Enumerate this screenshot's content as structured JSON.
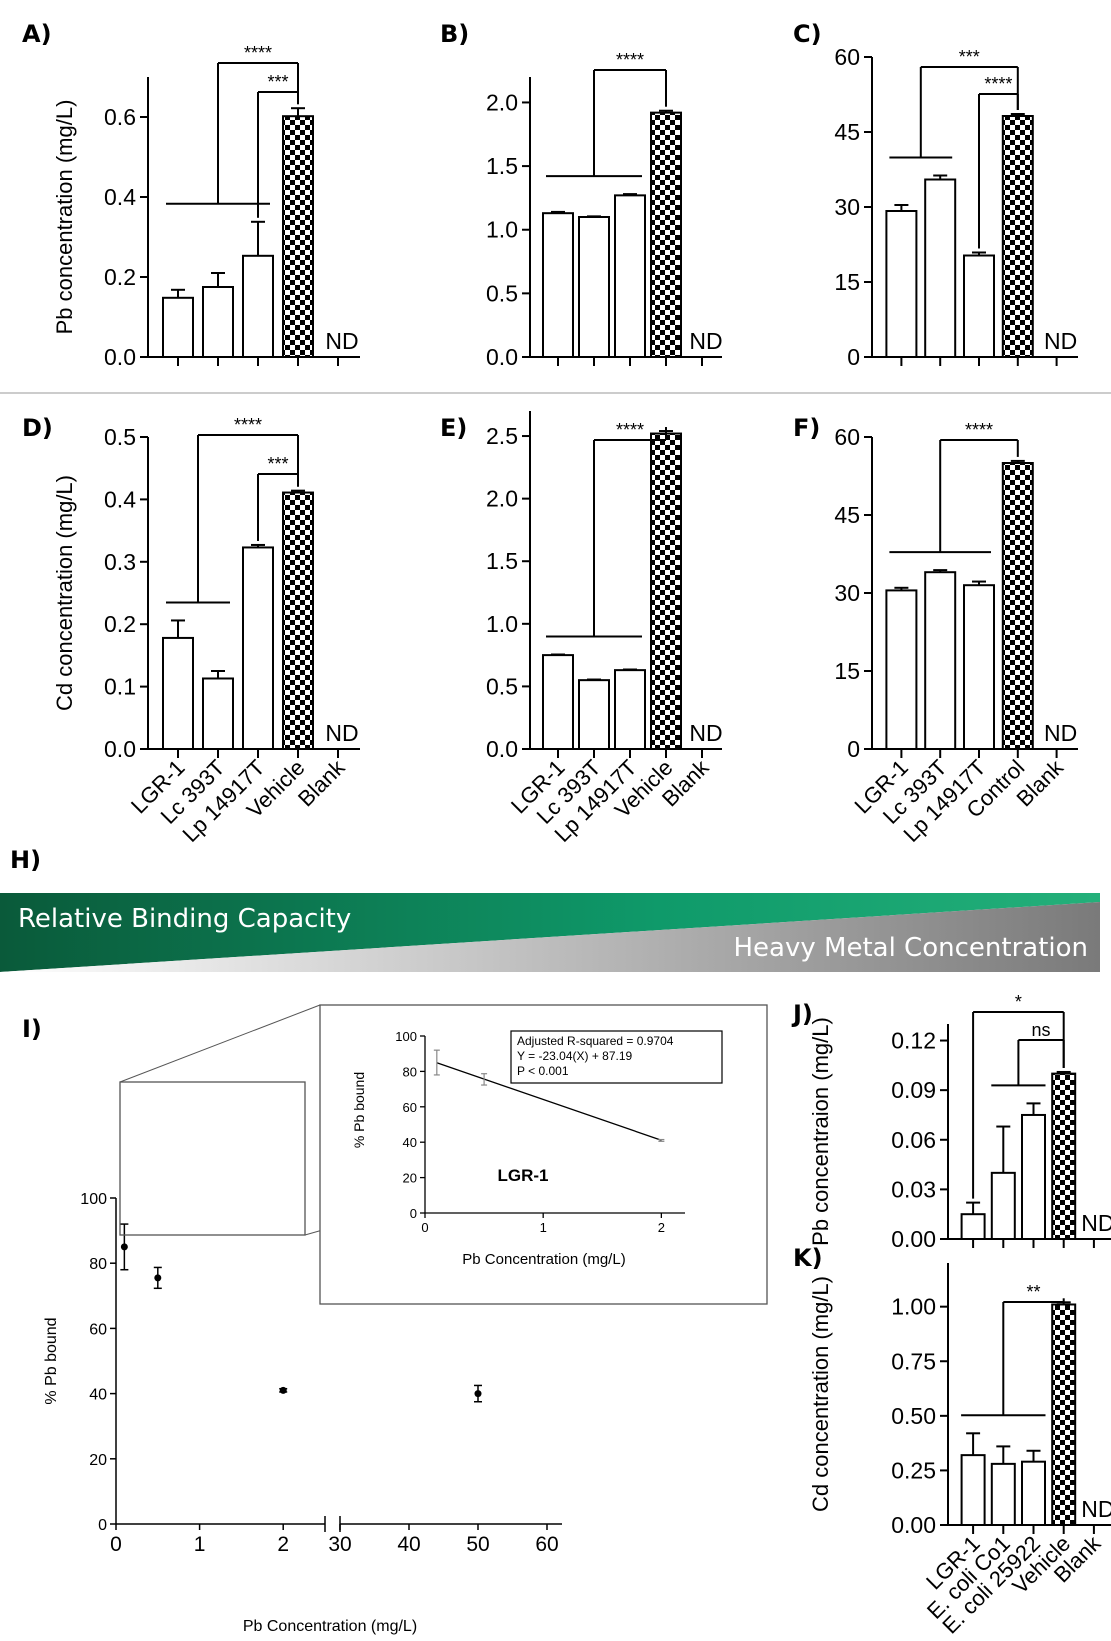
{
  "figure": {
    "panel_labels": [
      "A)",
      "B)",
      "C)",
      "D)",
      "E)",
      "F)",
      "H)",
      "I)",
      "J)",
      "K)"
    ],
    "nd_label": "ND"
  },
  "banner": {
    "top_text": "Relative Binding Capacity",
    "bottom_text": "Heavy Metal Concentration",
    "colors": {
      "green_dark": "#0a5a3a",
      "green": "#0f9a6a",
      "gray": "#8a8a8a"
    }
  },
  "colors": {
    "bar_fill": "#ffffff",
    "pattern_dark": "#000000",
    "axis": "#000000"
  },
  "chart_data": [
    {
      "panel": "A)",
      "type": "bar",
      "ylabel": "Pb concentration (mg/L)",
      "ylim": [
        0,
        0.7
      ],
      "yticks": [
        0.0,
        0.2,
        0.4,
        0.6
      ],
      "categories": [
        "LGR-1",
        "Lc 393T",
        "Lp 14917T",
        "Vehicle",
        "Blank"
      ],
      "values": [
        0.148,
        0.175,
        0.253,
        0.602,
        null
      ],
      "errors": [
        0.02,
        0.035,
        0.085,
        0.02,
        null
      ],
      "patterned_index": 3,
      "significance": [
        {
          "label": "****",
          "group": [
            0,
            2
          ],
          "to": 3
        },
        {
          "label": "***",
          "group": [
            2,
            2
          ],
          "to": 3
        }
      ]
    },
    {
      "panel": "B)",
      "type": "bar",
      "ylabel": "",
      "ylim": [
        0,
        2.2
      ],
      "yticks": [
        0.0,
        0.5,
        1.0,
        1.5,
        2.0
      ],
      "categories": [
        "LGR-1",
        "Lc 393T",
        "Lp 14917T",
        "Vehicle",
        "Blank"
      ],
      "values": [
        1.13,
        1.1,
        1.27,
        1.92,
        null
      ],
      "errors": [
        0.01,
        0.005,
        0.01,
        0.015,
        null
      ],
      "patterned_index": 3,
      "significance": [
        {
          "label": "****",
          "group": [
            0,
            2
          ],
          "to": 3
        }
      ]
    },
    {
      "panel": "C)",
      "type": "bar",
      "ylabel": "",
      "ylim": [
        0,
        60
      ],
      "yticks": [
        0,
        15,
        30,
        45,
        60
      ],
      "categories": [
        "LGR-1",
        "Lc 393T",
        "Lp 14917T",
        "Control",
        "Blank"
      ],
      "values": [
        29.2,
        35.5,
        20.3,
        48.2,
        null
      ],
      "errors": [
        1.2,
        0.8,
        0.6,
        0.4,
        null
      ],
      "patterned_index": 3,
      "significance": [
        {
          "label": "***",
          "group": [
            0,
            1
          ],
          "to": 3
        },
        {
          "label": "****",
          "group": [
            2,
            2
          ],
          "to": 3
        }
      ]
    },
    {
      "panel": "D)",
      "type": "bar",
      "ylabel": "Cd concentration (mg/L)",
      "ylim": [
        0,
        0.5
      ],
      "yticks": [
        0.0,
        0.1,
        0.2,
        0.3,
        0.4,
        0.5
      ],
      "categories": [
        "LGR-1",
        "Lc 393T",
        "Lp 14917T",
        "Vehicle",
        "Blank"
      ],
      "values": [
        0.178,
        0.113,
        0.323,
        0.411,
        null
      ],
      "errors": [
        0.028,
        0.012,
        0.004,
        0.003,
        null
      ],
      "patterned_index": 3,
      "significance": [
        {
          "label": "****",
          "group": [
            0,
            1
          ],
          "to": 3
        },
        {
          "label": "***",
          "group": [
            2,
            2
          ],
          "to": 3
        }
      ]
    },
    {
      "panel": "E)",
      "type": "bar",
      "ylabel": "",
      "ylim": [
        0,
        2.7
      ],
      "yticks": [
        0.0,
        0.5,
        1.0,
        1.5,
        2.0,
        2.5
      ],
      "categories": [
        "LGR-1",
        "Lc 393T",
        "Lp 14917T",
        "Vehicle",
        "Blank"
      ],
      "values": [
        0.75,
        0.55,
        0.63,
        2.52,
        null
      ],
      "errors": [
        0.005,
        0.005,
        0.005,
        0.02,
        null
      ],
      "patterned_index": 3,
      "significance": [
        {
          "label": "****",
          "group": [
            0,
            2
          ],
          "to": 3
        }
      ]
    },
    {
      "panel": "F)",
      "type": "bar",
      "ylabel": "",
      "ylim": [
        0,
        60
      ],
      "yticks": [
        0,
        15,
        30,
        45,
        60
      ],
      "categories": [
        "LGR-1",
        "Lc 393T",
        "Lp 14917T",
        "Control",
        "Blank"
      ],
      "values": [
        30.5,
        34.0,
        31.5,
        55.0,
        null
      ],
      "errors": [
        0.5,
        0.4,
        0.7,
        0.4,
        null
      ],
      "patterned_index": 3,
      "significance": [
        {
          "label": "****",
          "group": [
            0,
            2
          ],
          "to": 3
        }
      ]
    },
    {
      "panel": "I)",
      "type": "scatter",
      "ylabel": "% Pb bound",
      "xlabel": "Pb Concentration (mg/L)",
      "ylim": [
        0,
        100
      ],
      "yticks": [
        0,
        20,
        40,
        60,
        80,
        100
      ],
      "x_break": {
        "left_range": [
          0,
          2.5
        ],
        "right_range": [
          30,
          60
        ]
      },
      "xticks_left": [
        0,
        1,
        2
      ],
      "xticks_right": [
        30,
        40,
        50,
        60
      ],
      "x": [
        0.1,
        0.5,
        2,
        50
      ],
      "y": [
        85,
        75.5,
        41,
        40
      ],
      "errors": [
        7,
        3.2,
        0.5,
        2.5
      ],
      "inset": {
        "type": "line",
        "title": "LGR-1",
        "xlabel": "Pb Concentration (mg/L)",
        "ylabel": "% Pb bound",
        "xlim": [
          0,
          2.2
        ],
        "ylim": [
          0,
          100
        ],
        "xticks": [
          0,
          1,
          2
        ],
        "yticks": [
          0,
          20,
          40,
          60,
          80,
          100
        ],
        "x": [
          0.1,
          0.5,
          2
        ],
        "y": [
          85,
          75.5,
          41
        ],
        "errors": [
          7,
          3.2,
          0.5
        ],
        "fit": {
          "slope": -23.04,
          "intercept": 87.19
        },
        "stats": [
          "Adjusted  R-squared = 0.9704",
          "Y = -23.04(X) + 87.19",
          "P < 0.001"
        ]
      }
    },
    {
      "panel": "J)",
      "type": "bar",
      "ylabel": "Pb concentraion (mg/L)",
      "ylim": [
        0,
        0.13
      ],
      "yticks": [
        0.0,
        0.03,
        0.06,
        0.09,
        0.12
      ],
      "categories": [
        "LGR-1",
        "E. coli Co1",
        "E. coli 25922",
        "Vehicle",
        "Blank"
      ],
      "values": [
        0.015,
        0.04,
        0.075,
        0.1,
        null
      ],
      "errors": [
        0.007,
        0.028,
        0.007,
        0.001,
        null
      ],
      "patterned_index": 3,
      "significance": [
        {
          "label": "*",
          "group": [
            0,
            0
          ],
          "to": 3
        },
        {
          "label": "ns",
          "group": [
            1,
            2
          ],
          "to": 3
        }
      ]
    },
    {
      "panel": "K)",
      "type": "bar",
      "ylabel": "Cd concentration (mg/L)",
      "ylim": [
        0,
        1.2
      ],
      "yticks": [
        0.0,
        0.25,
        0.5,
        0.75,
        1.0
      ],
      "categories": [
        "LGR-1",
        "E. coli Co1",
        "E. coli 25922",
        "Vehicle",
        "Blank"
      ],
      "values": [
        0.32,
        0.28,
        0.29,
        1.01,
        null
      ],
      "errors": [
        0.1,
        0.08,
        0.05,
        0.01,
        null
      ],
      "patterned_index": 3,
      "significance": [
        {
          "label": "**",
          "group": [
            0,
            2
          ],
          "to": 3
        }
      ]
    }
  ]
}
